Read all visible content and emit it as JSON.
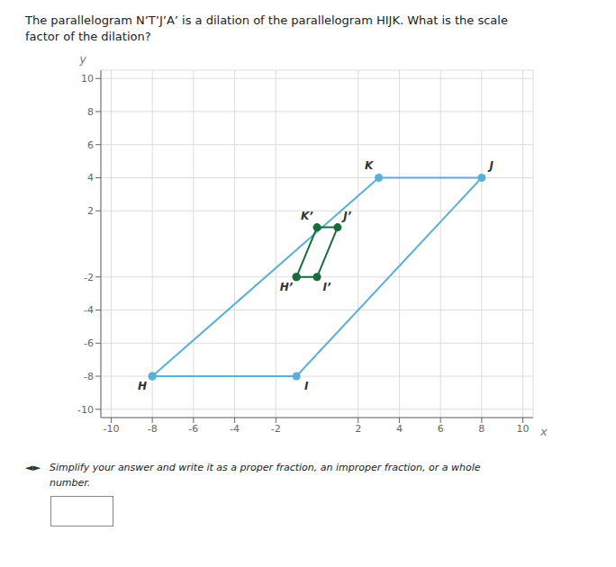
{
  "chart_data": {
    "type": "line",
    "title": "The parallelogram N’T’J’A’ is a dilation of the parallelogram HIJK. What is the scale\nfactor of the dilation?",
    "subtitle": "Simplify your answer and write it as a proper fraction, an improper fraction, or a whole\nnumber.",
    "annotations": [
      "◄►"
    ],
    "xlabel": "x",
    "ylabel": "y",
    "xlim": [
      -10.5,
      10.5
    ],
    "ylim": [
      -10.5,
      10.5
    ],
    "xticks": [
      -10,
      -8,
      -6,
      -4,
      -2,
      2,
      4,
      6,
      8,
      10
    ],
    "yticks": [
      -10,
      -8,
      -6,
      -4,
      -2,
      2,
      4,
      6,
      8,
      10
    ],
    "grid": true,
    "series": [
      {
        "color": "#5bafd6",
        "marker": "circle",
        "x": [
          -8,
          -1,
          8,
          3,
          -8
        ],
        "y": [
          -8,
          -8,
          4,
          4,
          -8
        ],
        "labels": [
          "H",
          "I",
          "J",
          "K",
          null
        ]
      },
      {
        "color": "#1a6b3c",
        "marker": "circle",
        "x": [
          -1,
          0,
          1,
          0,
          -1
        ],
        "y": [
          -2,
          -2,
          1,
          1,
          -2
        ],
        "labels": [
          "H’",
          "I’",
          "J’",
          "K’",
          null
        ]
      }
    ]
  }
}
